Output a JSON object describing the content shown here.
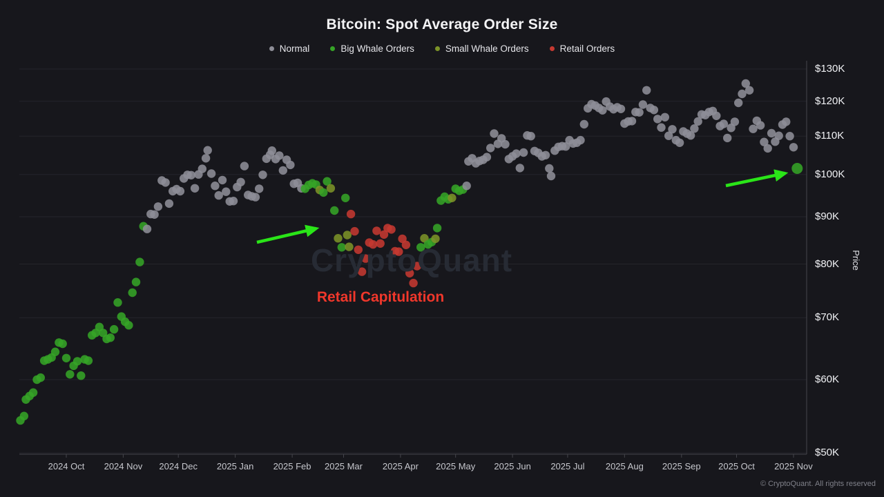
{
  "footer": {
    "copyright": "© CryptoQuant. All rights reserved"
  },
  "chart_data": {
    "type": "scatter",
    "title": "Bitcoin: Spot Average Order Size",
    "watermark": "CryptoQuant",
    "legend_position": "top-center",
    "grid": "horizontal-only",
    "background_color": "#17171c",
    "legend": [
      {
        "key": "n",
        "label": "Normal",
        "color": "#8e8e97"
      },
      {
        "key": "bw",
        "label": "Big Whale Orders",
        "color": "#36a427"
      },
      {
        "key": "sw",
        "label": "Small Whale Orders",
        "color": "#7c9328"
      },
      {
        "key": "r",
        "label": "Retail Orders",
        "color": "#c53931"
      }
    ],
    "y_axis": {
      "label": "Price",
      "scale": "log",
      "unit": "USD thousands",
      "range": [
        50,
        130
      ],
      "ticks": [
        {
          "value": 130,
          "label": "$130K"
        },
        {
          "value": 120,
          "label": "$120K"
        },
        {
          "value": 110,
          "label": "$110K"
        },
        {
          "value": 100,
          "label": "$100K"
        },
        {
          "value": 90,
          "label": "$90K"
        },
        {
          "value": 80,
          "label": "$80K"
        },
        {
          "value": 70,
          "label": "$70K"
        },
        {
          "value": 60,
          "label": "$60K"
        },
        {
          "value": 50,
          "label": "$50K"
        }
      ]
    },
    "x_axis": {
      "ticks": [
        {
          "label": "2024 Oct",
          "date": "2024-10-01"
        },
        {
          "label": "2024 Nov",
          "date": "2024-11-01"
        },
        {
          "label": "2024 Dec",
          "date": "2024-12-01"
        },
        {
          "label": "2025 Jan",
          "date": "2025-01-01"
        },
        {
          "label": "2025 Feb",
          "date": "2025-02-01"
        },
        {
          "label": "2025 Mar",
          "date": "2025-03-01"
        },
        {
          "label": "2025 Apr",
          "date": "2025-04-01"
        },
        {
          "label": "2025 May",
          "date": "2025-05-01"
        },
        {
          "label": "2025 Jun",
          "date": "2025-06-01"
        },
        {
          "label": "2025 Jul",
          "date": "2025-07-01"
        },
        {
          "label": "2025 Aug",
          "date": "2025-08-01"
        },
        {
          "label": "2025 Sep",
          "date": "2025-09-01"
        },
        {
          "label": "2025 Oct",
          "date": "2025-10-01"
        },
        {
          "label": "2025 Nov",
          "date": "2025-11-01"
        }
      ]
    },
    "points": [
      [
        "2024-09-06",
        54.2,
        "bw"
      ],
      [
        "2024-09-08",
        54.8,
        "bw"
      ],
      [
        "2024-09-09",
        57.1,
        "bw"
      ],
      [
        "2024-09-11",
        57.6,
        "bw"
      ],
      [
        "2024-09-13",
        58.1,
        "bw"
      ],
      [
        "2024-09-15",
        60.0,
        "bw"
      ],
      [
        "2024-09-17",
        60.3,
        "bw"
      ],
      [
        "2024-09-19",
        62.9,
        "bw"
      ],
      [
        "2024-09-21",
        63.1,
        "bw"
      ],
      [
        "2024-09-23",
        63.4,
        "bw"
      ],
      [
        "2024-09-25",
        64.3,
        "bw"
      ],
      [
        "2024-09-27",
        65.8,
        "bw"
      ],
      [
        "2024-09-29",
        65.6,
        "bw"
      ],
      [
        "2024-10-01",
        63.3,
        "bw"
      ],
      [
        "2024-10-03",
        60.8,
        "bw"
      ],
      [
        "2024-10-05",
        62.1,
        "bw"
      ],
      [
        "2024-10-07",
        62.8,
        "bw"
      ],
      [
        "2024-10-09",
        60.6,
        "bw"
      ],
      [
        "2024-10-11",
        63.1,
        "bw"
      ],
      [
        "2024-10-13",
        62.9,
        "bw"
      ],
      [
        "2024-10-15",
        67.0,
        "bw"
      ],
      [
        "2024-10-17",
        67.4,
        "bw"
      ],
      [
        "2024-10-19",
        68.4,
        "bw"
      ],
      [
        "2024-10-21",
        67.4,
        "bw"
      ],
      [
        "2024-10-23",
        66.4,
        "bw"
      ],
      [
        "2024-10-25",
        66.6,
        "bw"
      ],
      [
        "2024-10-27",
        68.0,
        "bw"
      ],
      [
        "2024-10-29",
        72.7,
        "bw"
      ],
      [
        "2024-10-31",
        70.2,
        "bw"
      ],
      [
        "2024-11-02",
        69.3,
        "bw"
      ],
      [
        "2024-11-04",
        68.7,
        "bw"
      ],
      [
        "2024-11-06",
        74.5,
        "bw"
      ],
      [
        "2024-11-08",
        76.5,
        "bw"
      ],
      [
        "2024-11-10",
        80.4,
        "bw"
      ],
      [
        "2024-11-12",
        87.9,
        "bw"
      ],
      [
        "2024-11-14",
        87.3,
        "n"
      ],
      [
        "2024-11-16",
        90.6,
        "n"
      ],
      [
        "2024-11-18",
        90.5,
        "n"
      ],
      [
        "2024-11-20",
        92.3,
        "n"
      ],
      [
        "2024-11-22",
        98.5,
        "n"
      ],
      [
        "2024-11-24",
        98.0,
        "n"
      ],
      [
        "2024-11-26",
        93.0,
        "n"
      ],
      [
        "2024-11-28",
        95.9,
        "n"
      ],
      [
        "2024-11-30",
        96.4,
        "n"
      ],
      [
        "2024-12-02",
        95.9,
        "n"
      ],
      [
        "2024-12-04",
        99.0,
        "n"
      ],
      [
        "2024-12-06",
        99.9,
        "n"
      ],
      [
        "2024-12-08",
        99.8,
        "n"
      ],
      [
        "2024-12-10",
        96.6,
        "n"
      ],
      [
        "2024-12-12",
        100.0,
        "n"
      ],
      [
        "2024-12-14",
        101.4,
        "n"
      ],
      [
        "2024-12-16",
        104.1,
        "n"
      ],
      [
        "2024-12-17",
        106.2,
        "n"
      ],
      [
        "2024-12-19",
        100.2,
        "n"
      ],
      [
        "2024-12-21",
        97.2,
        "n"
      ],
      [
        "2024-12-23",
        94.9,
        "n"
      ],
      [
        "2024-12-25",
        98.6,
        "n"
      ],
      [
        "2024-12-27",
        95.8,
        "n"
      ],
      [
        "2024-12-29",
        93.5,
        "n"
      ],
      [
        "2024-12-31",
        93.6,
        "n"
      ],
      [
        "2025-01-02",
        96.9,
        "n"
      ],
      [
        "2025-01-04",
        98.1,
        "n"
      ],
      [
        "2025-01-06",
        102.1,
        "n"
      ],
      [
        "2025-01-08",
        95.0,
        "n"
      ],
      [
        "2025-01-10",
        94.7,
        "n"
      ],
      [
        "2025-01-12",
        94.5,
        "n"
      ],
      [
        "2025-01-14",
        96.5,
        "n"
      ],
      [
        "2025-01-16",
        99.9,
        "n"
      ],
      [
        "2025-01-18",
        104.0,
        "n"
      ],
      [
        "2025-01-20",
        105.0,
        "n"
      ],
      [
        "2025-01-21",
        106.1,
        "n"
      ],
      [
        "2025-01-23",
        103.9,
        "n"
      ],
      [
        "2025-01-25",
        104.8,
        "n"
      ],
      [
        "2025-01-27",
        101.0,
        "n"
      ],
      [
        "2025-01-29",
        103.7,
        "n"
      ],
      [
        "2025-01-31",
        102.4,
        "n"
      ],
      [
        "2025-02-02",
        97.7,
        "n"
      ],
      [
        "2025-02-04",
        97.9,
        "n"
      ],
      [
        "2025-02-06",
        96.6,
        "n"
      ],
      [
        "2025-02-08",
        96.5,
        "bw"
      ],
      [
        "2025-02-10",
        97.4,
        "bw"
      ],
      [
        "2025-02-12",
        97.8,
        "bw"
      ],
      [
        "2025-02-14",
        97.5,
        "bw"
      ],
      [
        "2025-02-16",
        96.2,
        "sw"
      ],
      [
        "2025-02-18",
        95.6,
        "bw"
      ],
      [
        "2025-02-20",
        98.3,
        "bw"
      ],
      [
        "2025-02-22",
        96.6,
        "sw"
      ],
      [
        "2025-02-24",
        91.4,
        "bw"
      ],
      [
        "2025-02-26",
        85.3,
        "sw"
      ],
      [
        "2025-02-28",
        83.4,
        "bw"
      ],
      [
        "2025-03-02",
        94.3,
        "bw"
      ],
      [
        "2025-03-03",
        86.0,
        "sw"
      ],
      [
        "2025-03-04",
        83.5,
        "sw"
      ],
      [
        "2025-03-05",
        90.6,
        "r"
      ],
      [
        "2025-03-07",
        86.8,
        "r"
      ],
      [
        "2025-03-09",
        82.9,
        "r"
      ],
      [
        "2025-03-11",
        78.5,
        "r"
      ],
      [
        "2025-03-13",
        81.1,
        "r"
      ],
      [
        "2025-03-15",
        84.4,
        "r"
      ],
      [
        "2025-03-17",
        84.0,
        "r"
      ],
      [
        "2025-03-19",
        86.9,
        "r"
      ],
      [
        "2025-03-21",
        84.2,
        "r"
      ],
      [
        "2025-03-23",
        86.1,
        "r"
      ],
      [
        "2025-03-25",
        87.5,
        "r"
      ],
      [
        "2025-03-27",
        87.2,
        "r"
      ],
      [
        "2025-03-29",
        82.6,
        "r"
      ],
      [
        "2025-03-31",
        82.5,
        "r"
      ],
      [
        "2025-04-02",
        85.2,
        "r"
      ],
      [
        "2025-04-04",
        83.9,
        "r"
      ],
      [
        "2025-04-06",
        78.2,
        "r"
      ],
      [
        "2025-04-08",
        76.3,
        "r"
      ],
      [
        "2025-04-10",
        79.6,
        "r"
      ],
      [
        "2025-04-12",
        83.4,
        "bw"
      ],
      [
        "2025-04-14",
        85.3,
        "sw"
      ],
      [
        "2025-04-16",
        84.0,
        "bw"
      ],
      [
        "2025-04-18",
        84.5,
        "bw"
      ],
      [
        "2025-04-20",
        85.2,
        "sw"
      ],
      [
        "2025-04-21",
        87.5,
        "bw"
      ],
      [
        "2025-04-23",
        93.7,
        "bw"
      ],
      [
        "2025-04-25",
        94.6,
        "bw"
      ],
      [
        "2025-04-27",
        94.0,
        "bw"
      ],
      [
        "2025-04-29",
        94.3,
        "sw"
      ],
      [
        "2025-05-01",
        96.5,
        "bw"
      ],
      [
        "2025-05-03",
        96.0,
        "bw"
      ],
      [
        "2025-05-05",
        96.3,
        "bw"
      ],
      [
        "2025-05-07",
        97.2,
        "n"
      ],
      [
        "2025-05-08",
        103.3,
        "n"
      ],
      [
        "2025-05-10",
        104.1,
        "n"
      ],
      [
        "2025-05-12",
        102.8,
        "n"
      ],
      [
        "2025-05-14",
        103.4,
        "n"
      ],
      [
        "2025-05-16",
        103.7,
        "n"
      ],
      [
        "2025-05-18",
        104.4,
        "n"
      ],
      [
        "2025-05-20",
        106.8,
        "n"
      ],
      [
        "2025-05-22",
        110.7,
        "n"
      ],
      [
        "2025-05-24",
        107.9,
        "n"
      ],
      [
        "2025-05-26",
        109.4,
        "n"
      ],
      [
        "2025-05-28",
        107.8,
        "n"
      ],
      [
        "2025-05-30",
        103.9,
        "n"
      ],
      [
        "2025-06-01",
        104.6,
        "n"
      ],
      [
        "2025-06-03",
        105.3,
        "n"
      ],
      [
        "2025-06-05",
        101.6,
        "n"
      ],
      [
        "2025-06-07",
        105.6,
        "n"
      ],
      [
        "2025-06-09",
        110.2,
        "n"
      ],
      [
        "2025-06-11",
        110.0,
        "n"
      ],
      [
        "2025-06-13",
        106.0,
        "n"
      ],
      [
        "2025-06-15",
        105.5,
        "n"
      ],
      [
        "2025-06-17",
        104.6,
        "n"
      ],
      [
        "2025-06-19",
        104.9,
        "n"
      ],
      [
        "2025-06-21",
        101.5,
        "n"
      ],
      [
        "2025-06-22",
        99.6,
        "n"
      ],
      [
        "2025-06-24",
        106.1,
        "n"
      ],
      [
        "2025-06-26",
        107.1,
        "n"
      ],
      [
        "2025-06-28",
        107.3,
        "n"
      ],
      [
        "2025-06-30",
        107.2,
        "n"
      ],
      [
        "2025-07-02",
        108.9,
        "n"
      ],
      [
        "2025-07-04",
        108.0,
        "n"
      ],
      [
        "2025-07-06",
        108.2,
        "n"
      ],
      [
        "2025-07-08",
        108.9,
        "n"
      ],
      [
        "2025-07-10",
        113.3,
        "n"
      ],
      [
        "2025-07-12",
        117.9,
        "n"
      ],
      [
        "2025-07-14",
        119.1,
        "n"
      ],
      [
        "2025-07-16",
        118.7,
        "n"
      ],
      [
        "2025-07-18",
        118.0,
        "n"
      ],
      [
        "2025-07-20",
        117.3,
        "n"
      ],
      [
        "2025-07-22",
        119.9,
        "n"
      ],
      [
        "2025-07-24",
        118.4,
        "n"
      ],
      [
        "2025-07-26",
        117.6,
        "n"
      ],
      [
        "2025-07-28",
        118.2,
        "n"
      ],
      [
        "2025-07-30",
        117.7,
        "n"
      ],
      [
        "2025-08-01",
        113.5,
        "n"
      ],
      [
        "2025-08-03",
        114.1,
        "n"
      ],
      [
        "2025-08-05",
        114.2,
        "n"
      ],
      [
        "2025-08-07",
        116.8,
        "n"
      ],
      [
        "2025-08-09",
        116.7,
        "n"
      ],
      [
        "2025-08-11",
        119.0,
        "n"
      ],
      [
        "2025-08-13",
        123.3,
        "n"
      ],
      [
        "2025-08-15",
        118.0,
        "n"
      ],
      [
        "2025-08-17",
        117.4,
        "n"
      ],
      [
        "2025-08-19",
        114.8,
        "n"
      ],
      [
        "2025-08-21",
        112.4,
        "n"
      ],
      [
        "2025-08-23",
        115.3,
        "n"
      ],
      [
        "2025-08-25",
        110.1,
        "n"
      ],
      [
        "2025-08-27",
        111.9,
        "n"
      ],
      [
        "2025-08-29",
        108.9,
        "n"
      ],
      [
        "2025-08-31",
        108.2,
        "n"
      ],
      [
        "2025-09-02",
        111.3,
        "n"
      ],
      [
        "2025-09-04",
        110.7,
        "n"
      ],
      [
        "2025-09-06",
        110.2,
        "n"
      ],
      [
        "2025-09-08",
        112.1,
        "n"
      ],
      [
        "2025-09-10",
        114.1,
        "n"
      ],
      [
        "2025-09-12",
        116.1,
        "n"
      ],
      [
        "2025-09-14",
        115.9,
        "n"
      ],
      [
        "2025-09-16",
        116.8,
        "n"
      ],
      [
        "2025-09-18",
        117.1,
        "n"
      ],
      [
        "2025-09-20",
        115.7,
        "n"
      ],
      [
        "2025-09-22",
        112.8,
        "n"
      ],
      [
        "2025-09-24",
        113.4,
        "n"
      ],
      [
        "2025-09-26",
        109.5,
        "n"
      ],
      [
        "2025-09-28",
        112.3,
        "n"
      ],
      [
        "2025-09-30",
        114.0,
        "n"
      ],
      [
        "2025-10-02",
        119.5,
        "n"
      ],
      [
        "2025-10-04",
        122.2,
        "n"
      ],
      [
        "2025-10-06",
        125.4,
        "n"
      ],
      [
        "2025-10-08",
        123.3,
        "n"
      ],
      [
        "2025-10-10",
        112.0,
        "n"
      ],
      [
        "2025-10-12",
        114.3,
        "n"
      ],
      [
        "2025-10-14",
        113.0,
        "n"
      ],
      [
        "2025-10-16",
        108.4,
        "n"
      ],
      [
        "2025-10-18",
        106.7,
        "n"
      ],
      [
        "2025-10-20",
        110.8,
        "n"
      ],
      [
        "2025-10-22",
        108.5,
        "n"
      ],
      [
        "2025-10-24",
        110.1,
        "n"
      ],
      [
        "2025-10-26",
        113.2,
        "n"
      ],
      [
        "2025-10-28",
        114.0,
        "n"
      ],
      [
        "2025-10-30",
        110.0,
        "n"
      ],
      [
        "2025-11-01",
        107.0,
        "n"
      ],
      [
        "2025-11-03",
        101.5,
        "bw",
        8
      ]
    ],
    "annotations": {
      "label": {
        "text": "Retail Capitulation",
        "color": "#f0372b"
      },
      "arrow_color": "#2ae518",
      "arrows": [
        {
          "from": [
            372,
            351
          ],
          "to": [
            458,
            331
          ]
        },
        {
          "from": [
            1051,
            269
          ],
          "to": [
            1137,
            251
          ]
        }
      ]
    }
  }
}
